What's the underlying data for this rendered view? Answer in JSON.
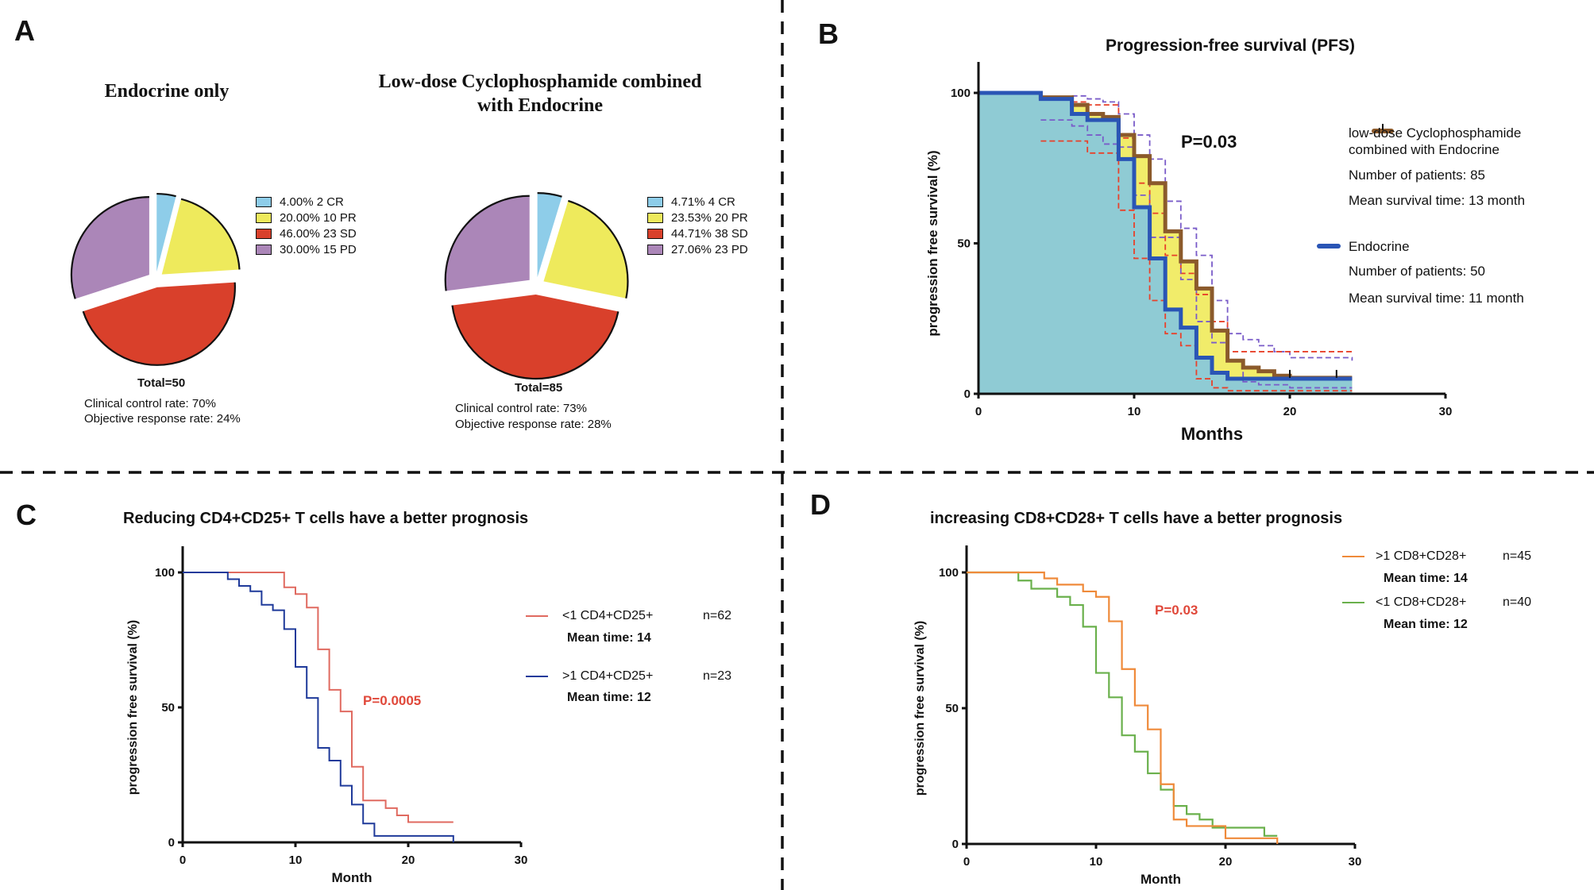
{
  "panels": {
    "A": {
      "letter": "A",
      "pies": [
        {
          "title": "Endocrine only",
          "total_label": "Total=50",
          "clinical_control_rate": "Clinical control rate: 70%",
          "objective_response_rate": "Objective response rate: 24%",
          "legend": [
            "4.00%  2 CR",
            "20.00%  10 PR",
            "46.00%  23 SD",
            "30.00%  15 PD"
          ]
        },
        {
          "title_line1": "Low-dose Cyclophosphamide combined",
          "title_line2": "with Endocrine",
          "total_label": "Total=85",
          "clinical_control_rate": "Clinical control rate: 73%",
          "objective_response_rate": "Objective response rate: 28%",
          "legend": [
            "4.71%  4 CR",
            "23.53%  20 PR",
            "44.71%  38 SD",
            "27.06%  23 PD"
          ]
        }
      ]
    },
    "B": {
      "letter": "B",
      "p_value": "P=0.03",
      "legend": {
        "series1_line1": "low-dose Cyclophosphamide",
        "series1_line2": "combined with Endocrine",
        "series1_patients": "Number of patients: 85",
        "series1_mean": "Mean survival time: 13 month",
        "series2_name": "Endocrine",
        "series2_patients": "Number of patients: 50",
        "series2_mean": "Mean survival time: 11 month"
      }
    },
    "C": {
      "letter": "C",
      "p_value": "P=0.0005",
      "legend": {
        "s1_name": "<1 CD4+CD25+",
        "s1_n": "n=62",
        "s1_mean": "Mean time: 14",
        "s2_name": ">1 CD4+CD25+",
        "s2_n": "n=23",
        "s2_mean": "Mean time: 12"
      }
    },
    "D": {
      "letter": "D",
      "p_value": "P=0.03",
      "legend": {
        "s1_name": ">1 CD8+CD28+",
        "s1_n": "n=45",
        "s1_mean": "Mean time: 14",
        "s2_name": "<1 CD8+CD28+",
        "s2_n": "n=40",
        "s2_mean": "Mean time: 12"
      }
    }
  },
  "colors": {
    "CR": "#8ecde9",
    "PR": "#eeea5c",
    "SD": "#d9402b",
    "PD": "#ab86b8",
    "b_combined": "#8b5a2b",
    "b_endocrine": "#2a55b5",
    "b_fill": "#8fcbd4",
    "b_band": "#f1ec6a",
    "b_ci_red": "#e8412a",
    "b_ci_purple": "#7a5cc9",
    "c_low": "#e06a60",
    "c_high": "#1f3a9a",
    "d_high": "#ef8a3a",
    "d_low": "#6ab04c",
    "p_red": "#e0483a"
  },
  "chart_data": [
    {
      "type": "pie",
      "title": "Endocrine only",
      "categories": [
        "CR",
        "PR",
        "SD",
        "PD"
      ],
      "values": [
        2,
        10,
        23,
        15
      ],
      "percent": [
        4.0,
        20.0,
        46.0,
        30.0
      ],
      "total": 50
    },
    {
      "type": "pie",
      "title": "Low-dose Cyclophosphamide combined with Endocrine",
      "categories": [
        "CR",
        "PR",
        "SD",
        "PD"
      ],
      "values": [
        4,
        20,
        38,
        23
      ],
      "percent": [
        4.71,
        23.53,
        44.71,
        27.06
      ],
      "total": 85
    },
    {
      "type": "line",
      "step": true,
      "title": "Progression-free survival (PFS)",
      "xlabel": "Months",
      "ylabel": "progression free survival (%)",
      "xlim": [
        0,
        30
      ],
      "ylim": [
        0,
        100
      ],
      "xticks": [
        0,
        10,
        20,
        30
      ],
      "yticks": [
        0,
        50,
        100
      ],
      "annotation": "P=0.03",
      "legend_position": "right",
      "series": [
        {
          "name": "low-dose Cyclophosphamide combined with Endocrine",
          "x": [
            0,
            4,
            5,
            6,
            7,
            8,
            9,
            10,
            11,
            12,
            13,
            14,
            15,
            16,
            17,
            18,
            19,
            20,
            24
          ],
          "y": [
            100,
            98.5,
            98.5,
            96,
            93,
            92,
            86,
            79,
            70,
            54,
            44,
            35,
            21,
            11,
            8.7,
            7.5,
            6,
            5.3,
            5.3
          ]
        },
        {
          "name": "Endocrine",
          "x": [
            0,
            4,
            6,
            7,
            9,
            10,
            11,
            12,
            13,
            14,
            15,
            16,
            24
          ],
          "y": [
            100,
            98,
            93,
            91,
            78,
            62,
            45,
            28,
            22,
            12,
            7,
            5,
            5
          ]
        },
        {
          "name": "CI upper (combined)",
          "style": "dashed",
          "x": [
            6,
            7,
            8,
            9,
            10,
            11,
            12,
            13,
            14,
            15,
            16,
            17,
            18,
            19,
            20,
            24
          ],
          "y": [
            99,
            98,
            97,
            93,
            86,
            78,
            64,
            55,
            46,
            31,
            20,
            18,
            16,
            14,
            12,
            11
          ]
        },
        {
          "name": "CI lower (combined)",
          "style": "dashed",
          "x": [
            4,
            6,
            7,
            9,
            10,
            11,
            12,
            13,
            14,
            15,
            16,
            24
          ],
          "y": [
            84,
            84,
            80,
            61,
            45,
            31,
            20,
            16,
            5,
            2,
            1,
            1
          ]
        },
        {
          "name": "CI upper (endocrine)",
          "style": "dashed",
          "x": [
            6,
            7,
            9,
            10,
            11,
            12,
            13,
            14,
            15,
            16,
            24
          ],
          "y": [
            97,
            96,
            85,
            70,
            60,
            46,
            40,
            33,
            24,
            14,
            14
          ]
        },
        {
          "name": "CI lower (endocrine)",
          "style": "dashed",
          "x": [
            4,
            5,
            6,
            7,
            8,
            9,
            10,
            11,
            13,
            14,
            15,
            16,
            17,
            18,
            19,
            20,
            24
          ],
          "y": [
            91,
            91,
            89,
            86,
            83,
            82,
            66,
            52,
            38,
            24,
            17,
            11,
            4,
            3,
            3,
            2,
            2
          ]
        }
      ]
    },
    {
      "type": "line",
      "step": true,
      "title": "Reducing CD4+CD25+ T cells have a better prognosis",
      "xlabel": "Month",
      "ylabel": "progression free survival (%)",
      "xlim": [
        0,
        30
      ],
      "ylim": [
        0,
        100
      ],
      "xticks": [
        0,
        10,
        20,
        30
      ],
      "yticks": [
        0,
        50,
        100
      ],
      "annotation": "P=0.0005",
      "legend_position": "right",
      "series": [
        {
          "name": "<1 CD4+CD25+ (n=62)",
          "x": [
            0,
            9,
            10,
            11,
            12,
            13,
            14,
            15,
            16,
            18,
            19,
            20,
            24
          ],
          "y": [
            100,
            94.5,
            92,
            87,
            71.5,
            56.5,
            48.5,
            28,
            15.5,
            12.7,
            10,
            7.5,
            7.5
          ]
        },
        {
          "name": ">1 CD4+CD25+ (n=23)",
          "x": [
            0,
            4,
            5,
            6,
            7,
            8,
            9,
            10,
            11,
            12,
            13,
            14,
            15,
            16,
            17,
            24
          ],
          "y": [
            100,
            97.5,
            95,
            93,
            88,
            86,
            79,
            65,
            53.5,
            35,
            30.3,
            21,
            14,
            7,
            2.4,
            0
          ]
        }
      ]
    },
    {
      "type": "line",
      "step": true,
      "title": "increasing CD8+CD28+ T cells have a better prognosis",
      "xlabel": "Month",
      "ylabel": "progression free survival (%)",
      "xlim": [
        0,
        30
      ],
      "ylim": [
        0,
        100
      ],
      "xticks": [
        0,
        10,
        20,
        30
      ],
      "yticks": [
        0,
        50,
        100
      ],
      "annotation": "P=0.03",
      "legend_position": "top-right",
      "series": [
        {
          "name": ">1 CD8+CD28+ (n=45)",
          "x": [
            0,
            6,
            7,
            9,
            10,
            11,
            12,
            13,
            14,
            15,
            16,
            17,
            20,
            24
          ],
          "y": [
            100,
            97.8,
            95.5,
            93,
            91,
            82,
            64.4,
            51,
            42.2,
            22,
            9,
            6.6,
            2.1,
            0
          ]
        },
        {
          "name": "<1 CD8+CD28+ (n=40)",
          "x": [
            0,
            4,
            5,
            7,
            8,
            9,
            10,
            11,
            12,
            13,
            14,
            15,
            16,
            17,
            18,
            19,
            23,
            24
          ],
          "y": [
            100,
            97,
            94,
            91,
            88,
            80,
            63,
            54,
            40,
            34,
            26,
            20,
            14,
            11,
            9,
            6,
            3,
            3
          ]
        }
      ]
    }
  ]
}
